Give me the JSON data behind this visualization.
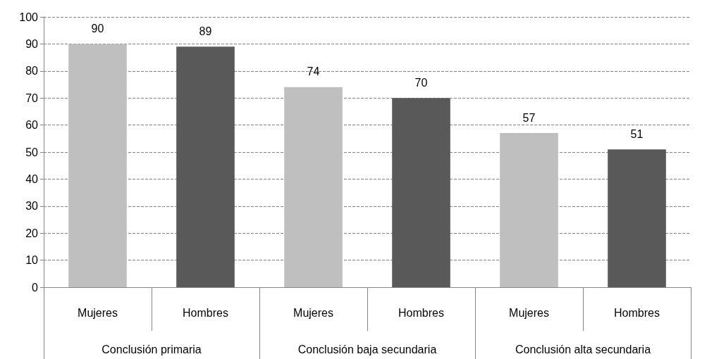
{
  "chart_data": {
    "type": "bar",
    "categories": [
      "Mujeres",
      "Hombres",
      "Mujeres",
      "Hombres",
      "Mujeres",
      "Hombres"
    ],
    "values": [
      90,
      89,
      74,
      70,
      57,
      51
    ],
    "colors": [
      "#bfbfbf",
      "#595959",
      "#bfbfbf",
      "#595959",
      "#bfbfbf",
      "#595959"
    ],
    "ylim": [
      0,
      100
    ],
    "yticks": [
      0,
      10,
      20,
      30,
      40,
      50,
      60,
      70,
      80,
      90,
      100
    ],
    "grid": "y",
    "data_labels": true,
    "annotations": [
      "Conclusión primaria",
      "Conclusión baja secundaria",
      "Conclusión alta secundaria"
    ]
  }
}
